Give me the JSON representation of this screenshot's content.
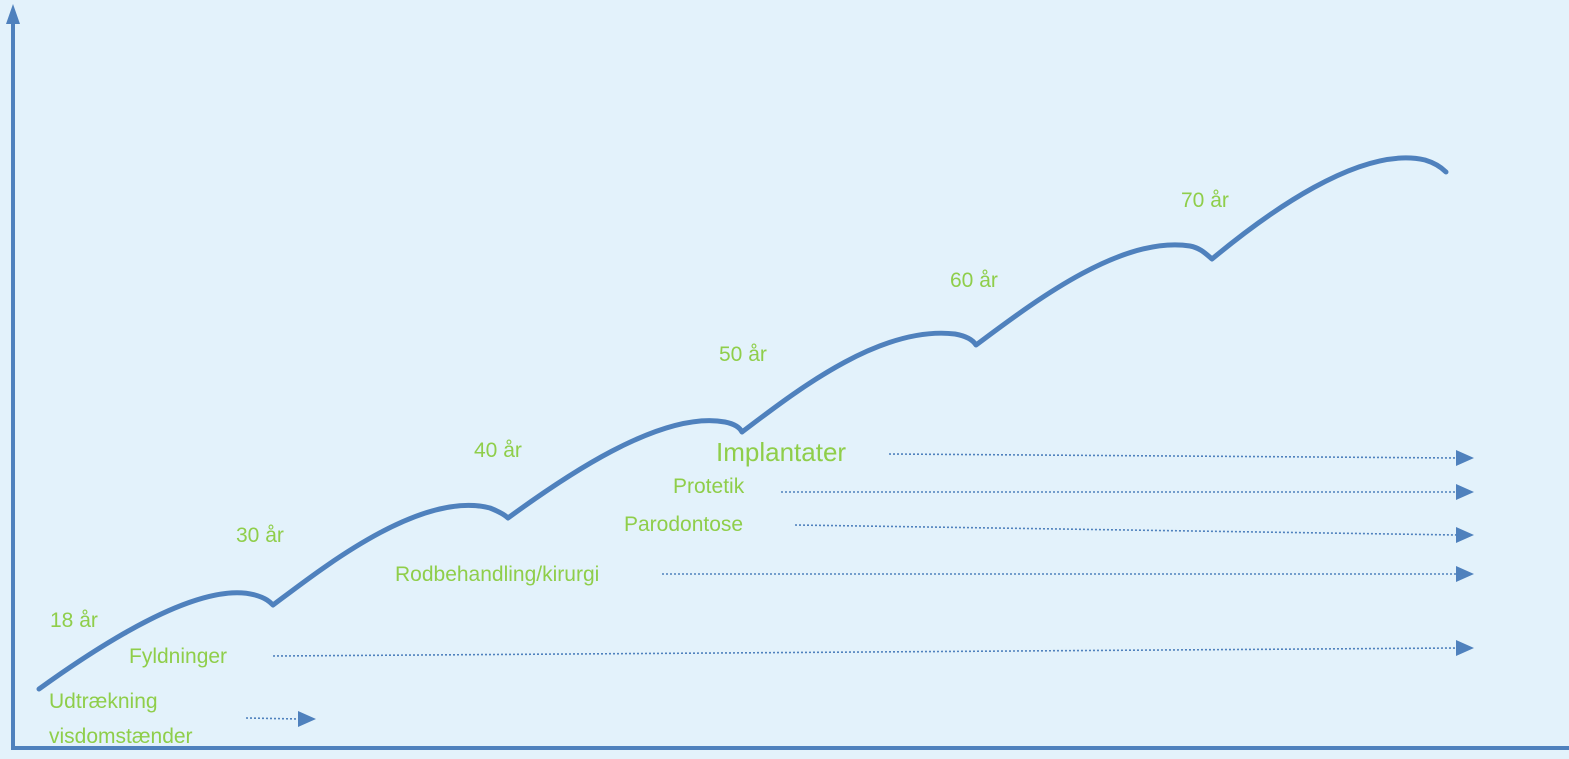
{
  "colors": {
    "background": "#e3f2fb",
    "curve": "#4f81bd",
    "label": "#8fce4a",
    "arrow": "#4f81bd"
  },
  "ages": {
    "a18": "18 år",
    "a30": "30 år",
    "a40": "40 år",
    "a50": "50 år",
    "a60": "60 år",
    "a70": "70 år"
  },
  "treatments": {
    "udtraekning_line1": "Udtrækning",
    "udtraekning_line2": "visdomstænder",
    "fyldninger": "Fyldninger",
    "rodbehandling": "Rodbehandling/kirurgi",
    "parodontose": "Parodontose",
    "protetik": "Protetik",
    "implantater": "Implantater"
  }
}
